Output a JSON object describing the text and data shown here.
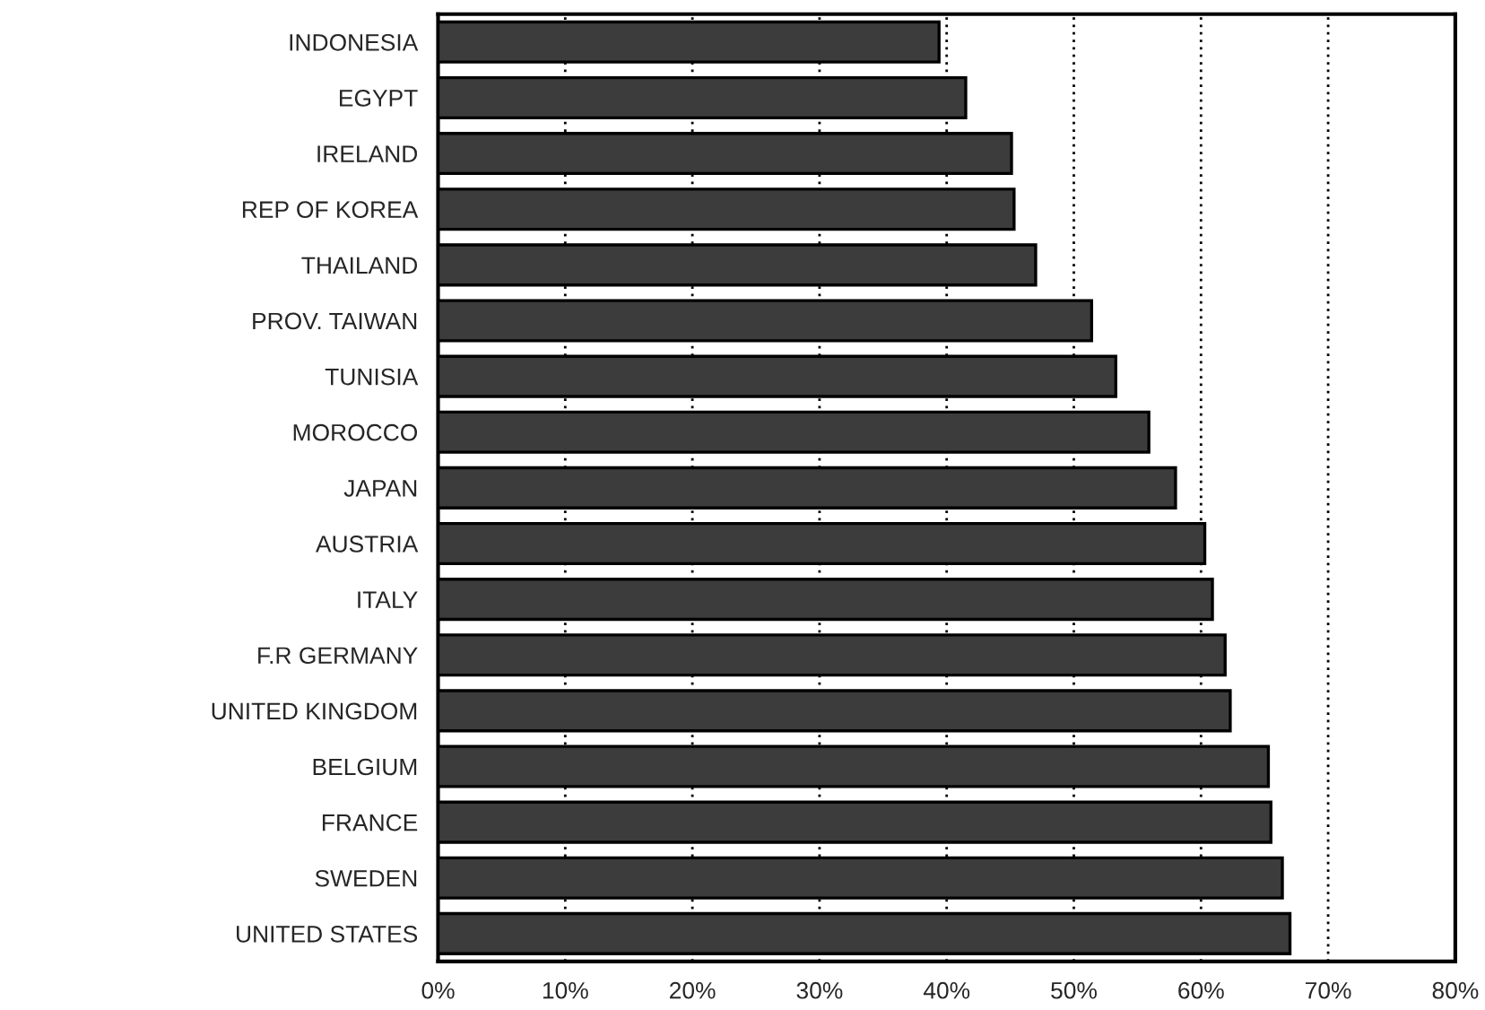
{
  "chart_data": {
    "type": "bar",
    "orientation": "horizontal",
    "categories": [
      "INDONESIA",
      "EGYPT",
      "IRELAND",
      "REP OF KOREA",
      "THAILAND",
      "PROV. TAIWAN",
      "TUNISIA",
      "MOROCCO",
      "JAPAN",
      "AUSTRIA",
      "ITALY",
      "F.R GERMANY",
      "UNITED KINGDOM",
      "BELGIUM",
      "FRANCE",
      "SWEDEN",
      "UNITED STATES"
    ],
    "values": [
      39.4,
      41.5,
      45.1,
      45.3,
      47.0,
      51.4,
      53.3,
      55.9,
      58.0,
      60.3,
      60.9,
      61.9,
      62.3,
      65.3,
      65.5,
      66.4,
      67.0
    ],
    "color": "#3c3c3c",
    "xlim": [
      0,
      80
    ],
    "xticks": [
      {
        "value": 0,
        "label": "0%"
      },
      {
        "value": 10,
        "label": "10%"
      },
      {
        "value": 20,
        "label": "20%"
      },
      {
        "value": 30,
        "label": "30%"
      },
      {
        "value": 40,
        "label": "40%"
      },
      {
        "value": 50,
        "label": "50%"
      },
      {
        "value": 60,
        "label": "60%"
      },
      {
        "value": 70,
        "label": "70%"
      },
      {
        "value": 80,
        "label": "80%"
      }
    ],
    "grid": "x"
  }
}
